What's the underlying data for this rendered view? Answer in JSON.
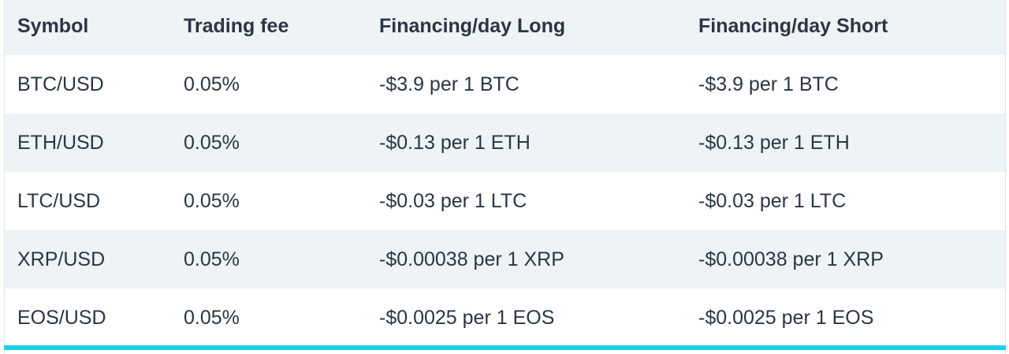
{
  "table": {
    "headers": [
      "Symbol",
      "Trading fee",
      "Financing/day Long",
      "Financing/day Short"
    ],
    "rows": [
      [
        "BTC/USD",
        "0.05%",
        "-$3.9 per 1 BTC",
        "-$3.9 per 1 BTC"
      ],
      [
        "ETH/USD",
        "0.05%",
        "-$0.13 per 1 ETH",
        "-$0.13 per 1 ETH"
      ],
      [
        "LTC/USD",
        "0.05%",
        "-$0.03 per 1 LTC",
        "-$0.03 per 1 LTC"
      ],
      [
        "XRP/USD",
        "0.05%",
        "-$0.00038 per 1 XRP",
        "-$0.00038 per 1 XRP"
      ],
      [
        "EOS/USD",
        "0.05%",
        "-$0.0025 per 1 EOS",
        "-$0.0025 per 1 EOS"
      ]
    ]
  },
  "colors": {
    "header_bg": "#eef3f6",
    "stripe_bg": "#eef3f6",
    "text": "#2b3544",
    "accent_bar": "#1ccfe8"
  }
}
